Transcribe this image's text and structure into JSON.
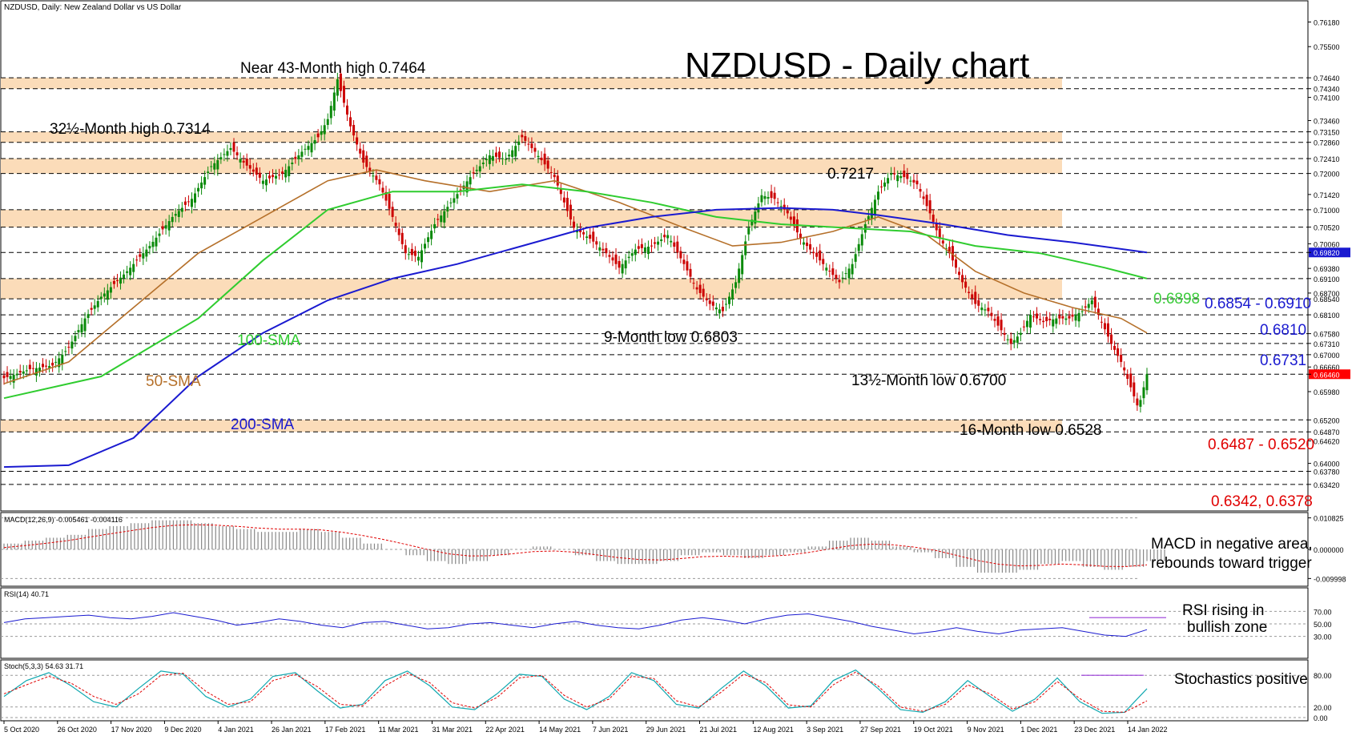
{
  "header": {
    "symbol_label": "NZDUSD, Daily:  New Zealand Dollar vs US Dollar",
    "title": "NZDUSD - Daily chart"
  },
  "colors": {
    "zone": "#fbdcb9",
    "candle_up": "#0a8a0a",
    "candle_down": "#cc0000",
    "sma50": "#b5702a",
    "sma100": "#2fcc2f",
    "sma200": "#1a1ad0",
    "tenkan": "#e00000",
    "kijun": "#1a3ad8",
    "chikou": "#22c822",
    "macd_hist": "#888888",
    "macd_signal": "#e00000",
    "rsi_line": "#1a1ad0",
    "stoch_k": "#10a8b0",
    "stoch_d": "#e00000",
    "price_tag": "#ff0000",
    "highlight_tag": "#1a1ad0"
  },
  "chart_data": {
    "type": "line",
    "main": {
      "y_range": [
        0.6282,
        0.7661
      ],
      "axis_ticks": [
        "0.76180",
        "0.75500",
        "0.74640",
        "0.74340",
        "0.74100",
        "0.73460",
        "0.73150",
        "0.72860",
        "0.72410",
        "0.72000",
        "0.71420",
        "0.71000",
        "0.70520",
        "0.70060",
        "0.69820",
        "0.69380",
        "0.69100",
        "0.68700",
        "0.68540",
        "0.68100",
        "0.67580",
        "0.67310",
        "0.67000",
        "0.66660",
        "0.66460",
        "0.65980",
        "0.65200",
        "0.64870",
        "0.64620",
        "0.64000",
        "0.63780",
        "0.63420"
      ],
      "highlighted_ticks": {
        "0.69820": "blue",
        "0.66460": "red"
      },
      "support_resistance_lines": [
        0.7464,
        0.7434,
        0.7315,
        0.7286,
        0.7241,
        0.72,
        0.71,
        0.7052,
        0.6982,
        0.691,
        0.6854,
        0.681,
        0.6758,
        0.6731,
        0.67,
        0.6646,
        0.652,
        0.6487,
        0.6378,
        0.6342
      ],
      "zones": [
        [
          0.7434,
          0.7464
        ],
        [
          0.7286,
          0.7315
        ],
        [
          0.72,
          0.7241
        ],
        [
          0.7052,
          0.71
        ],
        [
          0.6854,
          0.691
        ],
        [
          0.6487,
          0.652
        ]
      ],
      "x_labels": [
        "5 Oct 2020",
        "26 Oct 2020",
        "17 Nov 2020",
        "9 Dec 2020",
        "4 Jan 2021",
        "26 Jan 2021",
        "17 Feb 2021",
        "11 Mar 2021",
        "31 Mar 2021",
        "22 Apr 2021",
        "14 May 2021",
        "7 Jun 2021",
        "29 Jun 2021",
        "21 Jul 2021",
        "12 Aug 2021",
        "3 Sep 2021",
        "27 Sep 2021",
        "19 Oct 2021",
        "9 Nov 2021",
        "1 Dec 2021",
        "23 Dec 2021",
        "14 Jan 2022"
      ],
      "price_path": [
        [
          0,
          0.6635
        ],
        [
          8,
          0.666
        ],
        [
          15,
          0.667
        ],
        [
          20,
          0.672
        ],
        [
          25,
          0.68
        ],
        [
          30,
          0.686
        ],
        [
          38,
          0.693
        ],
        [
          45,
          0.7
        ],
        [
          52,
          0.708
        ],
        [
          58,
          0.713
        ],
        [
          64,
          0.722
        ],
        [
          70,
          0.727
        ],
        [
          74,
          0.723
        ],
        [
          80,
          0.718
        ],
        [
          86,
          0.72
        ],
        [
          92,
          0.726
        ],
        [
          97,
          0.73
        ],
        [
          100,
          0.735
        ],
        [
          103,
          0.746
        ],
        [
          107,
          0.733
        ],
        [
          111,
          0.723
        ],
        [
          116,
          0.717
        ],
        [
          120,
          0.708
        ],
        [
          124,
          0.698
        ],
        [
          128,
          0.697
        ],
        [
          133,
          0.706
        ],
        [
          138,
          0.712
        ],
        [
          144,
          0.719
        ],
        [
          150,
          0.725
        ],
        [
          155,
          0.724
        ],
        [
          160,
          0.73
        ],
        [
          164,
          0.726
        ],
        [
          170,
          0.719
        ],
        [
          176,
          0.705
        ],
        [
          181,
          0.702
        ],
        [
          186,
          0.698
        ],
        [
          190,
          0.694
        ],
        [
          195,
          0.699
        ],
        [
          200,
          0.7
        ],
        [
          205,
          0.703
        ],
        [
          210,
          0.695
        ],
        [
          214,
          0.688
        ],
        [
          218,
          0.684
        ],
        [
          222,
          0.682
        ],
        [
          226,
          0.69
        ],
        [
          230,
          0.705
        ],
        [
          234,
          0.714
        ],
        [
          238,
          0.713
        ],
        [
          242,
          0.709
        ],
        [
          246,
          0.702
        ],
        [
          250,
          0.698
        ],
        [
          254,
          0.694
        ],
        [
          258,
          0.69
        ],
        [
          262,
          0.695
        ],
        [
          266,
          0.706
        ],
        [
          270,
          0.715
        ],
        [
          274,
          0.72
        ],
        [
          278,
          0.719
        ],
        [
          282,
          0.717
        ],
        [
          286,
          0.709
        ],
        [
          289,
          0.702
        ],
        [
          292,
          0.698
        ],
        [
          296,
          0.69
        ],
        [
          300,
          0.684
        ],
        [
          304,
          0.682
        ],
        [
          307,
          0.678
        ],
        [
          311,
          0.673
        ],
        [
          314,
          0.676
        ],
        [
          317,
          0.681
        ],
        [
          321,
          0.679
        ],
        [
          325,
          0.68
        ],
        [
          329,
          0.68
        ],
        [
          333,
          0.682
        ],
        [
          336,
          0.685
        ],
        [
          339,
          0.679
        ],
        [
          342,
          0.673
        ],
        [
          345,
          0.668
        ],
        [
          348,
          0.661
        ],
        [
          350,
          0.656
        ],
        [
          351,
          0.6575
        ],
        [
          352,
          0.661
        ],
        [
          353,
          0.6646
        ]
      ],
      "sma50": [
        [
          0,
          0.662
        ],
        [
          20,
          0.668
        ],
        [
          40,
          0.683
        ],
        [
          60,
          0.698
        ],
        [
          80,
          0.708
        ],
        [
          100,
          0.718
        ],
        [
          115,
          0.721
        ],
        [
          130,
          0.718
        ],
        [
          150,
          0.715
        ],
        [
          170,
          0.718
        ],
        [
          190,
          0.712
        ],
        [
          210,
          0.705
        ],
        [
          225,
          0.7
        ],
        [
          240,
          0.701
        ],
        [
          256,
          0.704
        ],
        [
          270,
          0.708
        ],
        [
          285,
          0.703
        ],
        [
          300,
          0.693
        ],
        [
          315,
          0.687
        ],
        [
          330,
          0.683
        ],
        [
          345,
          0.68
        ],
        [
          353,
          0.676
        ]
      ],
      "sma100": [
        [
          0,
          0.658
        ],
        [
          30,
          0.664
        ],
        [
          60,
          0.68
        ],
        [
          80,
          0.696
        ],
        [
          100,
          0.71
        ],
        [
          120,
          0.715
        ],
        [
          140,
          0.715
        ],
        [
          160,
          0.717
        ],
        [
          180,
          0.715
        ],
        [
          200,
          0.712
        ],
        [
          220,
          0.708
        ],
        [
          240,
          0.706
        ],
        [
          260,
          0.705
        ],
        [
          280,
          0.704
        ],
        [
          300,
          0.7
        ],
        [
          320,
          0.698
        ],
        [
          340,
          0.694
        ],
        [
          353,
          0.691
        ]
      ],
      "sma200": [
        [
          0,
          0.639
        ],
        [
          20,
          0.6395
        ],
        [
          40,
          0.647
        ],
        [
          60,
          0.664
        ],
        [
          80,
          0.676
        ],
        [
          100,
          0.685
        ],
        [
          120,
          0.691
        ],
        [
          140,
          0.695
        ],
        [
          160,
          0.7
        ],
        [
          180,
          0.705
        ],
        [
          200,
          0.708
        ],
        [
          220,
          0.71
        ],
        [
          240,
          0.7105
        ],
        [
          256,
          0.71
        ],
        [
          270,
          0.7085
        ],
        [
          290,
          0.706
        ],
        [
          310,
          0.703
        ],
        [
          330,
          0.701
        ],
        [
          353,
          0.6982
        ]
      ]
    },
    "macd": {
      "label": "MACD(12,26,9) -0.005461 -0.004116",
      "ticks": [
        "0.010825",
        "0.000000",
        "-0.009998"
      ],
      "histogram": [
        0.002,
        0.003,
        0.004,
        0.005,
        0.007,
        0.008,
        0.009,
        0.01,
        0.01,
        0.009,
        0.008,
        0.007,
        0.006,
        0.006,
        0.007,
        0.006,
        0.004,
        0.002,
        0.0,
        -0.002,
        -0.004,
        -0.005,
        -0.004,
        -0.002,
        0.0,
        0.001,
        0.0,
        -0.002,
        -0.004,
        -0.005,
        -0.005,
        -0.004,
        -0.002,
        -0.001,
        -0.002,
        -0.003,
        -0.002,
        -0.001,
        0.001,
        0.003,
        0.004,
        0.003,
        0.001,
        -0.001,
        -0.003,
        -0.006,
        -0.008,
        -0.008,
        -0.007,
        -0.005,
        -0.004,
        -0.006,
        -0.007,
        -0.006,
        -0.004
      ]
    },
    "rsi": {
      "label": "RSI(14) 40.71",
      "ticks": [
        "70.00",
        "50.00",
        "30.00"
      ],
      "ylim": [
        0,
        100
      ],
      "values": [
        52,
        58,
        60,
        62,
        64,
        60,
        58,
        62,
        68,
        62,
        56,
        48,
        52,
        58,
        54,
        48,
        44,
        52,
        54,
        48,
        42,
        44,
        50,
        52,
        48,
        44,
        50,
        54,
        48,
        44,
        42,
        48,
        56,
        60,
        56,
        50,
        58,
        64,
        66,
        60,
        54,
        46,
        40,
        34,
        38,
        44,
        38,
        34,
        40,
        42,
        44,
        38,
        32,
        30,
        40.71
      ]
    },
    "stoch": {
      "label": "Stoch(5,3,3) 54.63 31.71",
      "ticks": [
        "80.00",
        "20.00",
        "0.00"
      ],
      "ylim": [
        0,
        100
      ],
      "k_values": [
        40,
        70,
        85,
        60,
        30,
        20,
        55,
        88,
        82,
        40,
        20,
        35,
        78,
        85,
        50,
        18,
        25,
        70,
        88,
        60,
        20,
        15,
        45,
        82,
        78,
        35,
        15,
        40,
        85,
        70,
        25,
        18,
        55,
        88,
        60,
        18,
        22,
        70,
        90,
        55,
        15,
        10,
        30,
        70,
        40,
        12,
        35,
        75,
        30,
        8,
        10,
        54.63
      ],
      "d_values": [
        45,
        62,
        78,
        65,
        40,
        25,
        45,
        80,
        84,
        50,
        25,
        30,
        70,
        82,
        58,
        25,
        22,
        60,
        84,
        66,
        28,
        18,
        38,
        75,
        80,
        42,
        20,
        35,
        78,
        74,
        32,
        20,
        48,
        82,
        66,
        24,
        20,
        62,
        86,
        60,
        20,
        12,
        25,
        62,
        45,
        16,
        30,
        68,
        36,
        12,
        10,
        31.71
      ]
    }
  },
  "annotations": {
    "near43": "Near 43-Month high 0.7464",
    "m32": "32½-Month high 0.7314",
    "v7217": "0.7217",
    "low9": "9-Month low 0.6803",
    "low13": "13½-Month low 0.6700",
    "low16": "16-Month low 0.6528",
    "sma100_label": "100-SMA",
    "sma50_label": "50-SMA",
    "sma200_label": "200-SMA",
    "z6898": "0.6898",
    "z6854": "0.6854 - 0.6910",
    "z6810": "0.6810",
    "z6731": "0.6731",
    "z6487": "0.6487 - 0.6520",
    "z6342": "0.6342, 0.6378",
    "macd_text1": "MACD in negative area,",
    "macd_text2": "rebounds toward trigger",
    "rsi_text1": "RSI rising in",
    "rsi_text2": "bullish zone",
    "stoch_text": "Stochastics positive"
  }
}
